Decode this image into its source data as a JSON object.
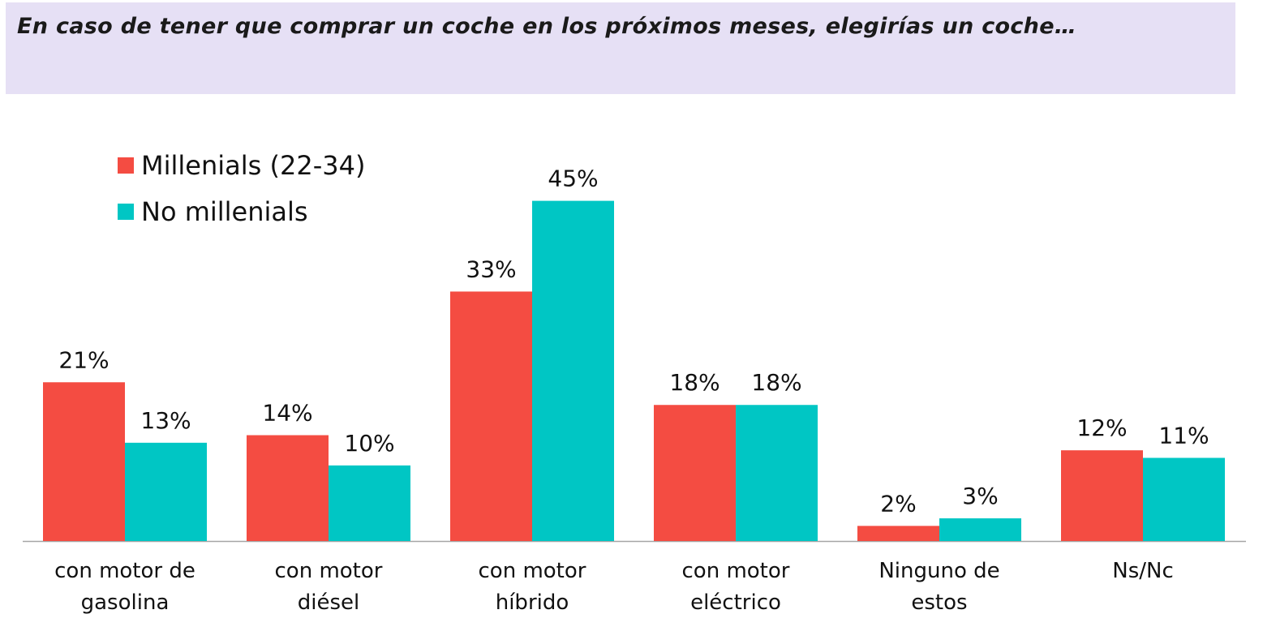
{
  "title": "En caso de tener que comprar un coche en los próximos meses, elegirías un coche…",
  "colors": {
    "millenials": "#f44c42",
    "no_millenials": "#00c6c4",
    "title_band": "#e6e0f5",
    "axis": "#a6a6a6"
  },
  "chart_data": {
    "type": "bar",
    "title": "En caso de tener que comprar un coche en los próximos meses, elegirías un coche…",
    "xlabel": "",
    "ylabel": "",
    "ylim": [
      0,
      50
    ],
    "grid": false,
    "legend_position": "top-left",
    "categories": [
      [
        "con motor de",
        "gasolina"
      ],
      [
        "con motor",
        "diésel"
      ],
      [
        "con motor",
        "híbrido"
      ],
      [
        "con motor",
        "eléctrico"
      ],
      [
        "Ninguno de",
        "estos"
      ],
      [
        "Ns/Nc"
      ]
    ],
    "series": [
      {
        "name": "Millenials (22-34)",
        "color": "#f44c42",
        "values": [
          21,
          14,
          33,
          18,
          2,
          12
        ],
        "labels": [
          "21%",
          "14%",
          "33%",
          "18%",
          "2%",
          "12%"
        ]
      },
      {
        "name": "No millenials",
        "color": "#00c6c4",
        "values": [
          13,
          10,
          45,
          18,
          3,
          11
        ],
        "labels": [
          "13%",
          "10%",
          "45%",
          "18%",
          "3%",
          "11%"
        ]
      }
    ]
  }
}
